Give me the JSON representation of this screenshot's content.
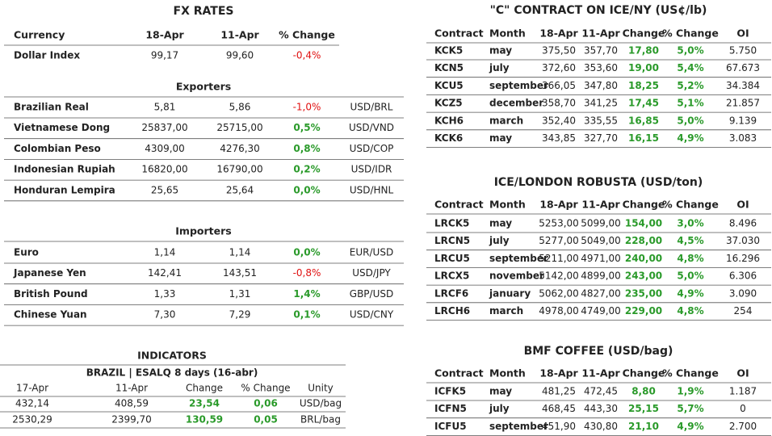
{
  "fx_rates": {
    "title": "FX RATES",
    "columns": [
      "Currency",
      "18-Apr",
      "11-Apr",
      "% Change"
    ],
    "rows": [
      [
        "Dollar Index",
        "99,17",
        "99,60",
        "-0,4%"
      ]
    ]
  },
  "exporters": {
    "title": "Exporters",
    "rows": [
      [
        "Brazilian Real",
        "5,81",
        "5,86",
        "-1,0%",
        "USD/BRL"
      ],
      [
        "Vietnamese Dong",
        "25837,00",
        "25715,00",
        "0,5%",
        "USD/VND"
      ],
      [
        "Colombian Peso",
        "4309,00",
        "4276,30",
        "0,8%",
        "USD/COP"
      ],
      [
        "Indonesian Rupiah",
        "16820,00",
        "16790,00",
        "0,2%",
        "USD/IDR"
      ],
      [
        "Honduran Lempira",
        "25,65",
        "25,64",
        "0,0%",
        "USD/HNL"
      ]
    ]
  },
  "importers": {
    "title": "Importers",
    "rows": [
      [
        "Euro",
        "1,14",
        "1,14",
        "0,0%",
        "EUR/USD"
      ],
      [
        "Japanese Yen",
        "142,41",
        "143,51",
        "-0,8%",
        "USD/JPY"
      ],
      [
        "British Pound",
        "1,33",
        "1,31",
        "1,4%",
        "GBP/USD"
      ],
      [
        "Chinese Yuan",
        "7,30",
        "7,29",
        "0,1%",
        "USD/CNY"
      ]
    ]
  },
  "indicators": {
    "title": "INDICATORS",
    "subtitle": "BRAZIL | ESALQ 8 days (16-abr)",
    "columns": [
      "17-Apr",
      "11-Apr",
      "Change",
      "% Change",
      "Unity"
    ],
    "rows": [
      [
        "432,14",
        "408,59",
        "23,54",
        "0,06",
        "USD/bag"
      ],
      [
        "2530,29",
        "2399,70",
        "130,59",
        "0,05",
        "BRL/bag"
      ]
    ]
  },
  "c_contract": {
    "title": "\"C\" CONTRACT ON ICE/NY (US¢/lb)",
    "columns": [
      "Contract",
      "Month",
      "18-Apr",
      "11-Apr",
      "Change",
      "% Change",
      "OI"
    ],
    "rows": [
      [
        "KCK5",
        "may",
        "375,50",
        "357,70",
        "17,80",
        "5,0%",
        "5.750"
      ],
      [
        "KCN5",
        "july",
        "372,60",
        "353,60",
        "19,00",
        "5,4%",
        "67.673"
      ],
      [
        "KCU5",
        "september",
        "366,05",
        "347,80",
        "18,25",
        "5,2%",
        "34.384"
      ],
      [
        "KCZ5",
        "december",
        "358,70",
        "341,25",
        "17,45",
        "5,1%",
        "21.857"
      ],
      [
        "KCH6",
        "march",
        "352,40",
        "335,55",
        "16,85",
        "5,0%",
        "9.139"
      ],
      [
        "KCK6",
        "may",
        "343,85",
        "327,70",
        "16,15",
        "4,9%",
        "3.083"
      ]
    ]
  },
  "robusta": {
    "title": "ICE/LONDON ROBUSTA (USD/ton)",
    "columns": [
      "Contract",
      "Month",
      "18-Apr",
      "11-Apr",
      "Change",
      "% Change",
      "OI"
    ],
    "rows": [
      [
        "LRCK5",
        "may",
        "5253,00",
        "5099,00",
        "154,00",
        "3,0%",
        "8.496"
      ],
      [
        "LRCN5",
        "july",
        "5277,00",
        "5049,00",
        "228,00",
        "4,5%",
        "37.030"
      ],
      [
        "LRCU5",
        "september",
        "5211,00",
        "4971,00",
        "240,00",
        "4,8%",
        "16.296"
      ],
      [
        "LRCX5",
        "november",
        "5142,00",
        "4899,00",
        "243,00",
        "5,0%",
        "6.306"
      ],
      [
        "LRCF6",
        "january",
        "5062,00",
        "4827,00",
        "235,00",
        "4,9%",
        "3.090"
      ],
      [
        "LRCH6",
        "march",
        "4978,00",
        "4749,00",
        "229,00",
        "4,8%",
        "254"
      ]
    ]
  },
  "bmf": {
    "title": "BMF COFFEE (USD/bag)",
    "columns": [
      "Contract",
      "Month",
      "18-Apr",
      "11-Apr",
      "Change",
      "% Change",
      "OI"
    ],
    "rows": [
      [
        "ICFK5",
        "may",
        "481,25",
        "472,45",
        "8,80",
        "1,9%",
        "1.187"
      ],
      [
        "ICFN5",
        "july",
        "468,45",
        "443,30",
        "25,15",
        "5,7%",
        "0"
      ],
      [
        "ICFU5",
        "september",
        "451,90",
        "430,80",
        "21,10",
        "4,9%",
        "2.700"
      ]
    ]
  }
}
